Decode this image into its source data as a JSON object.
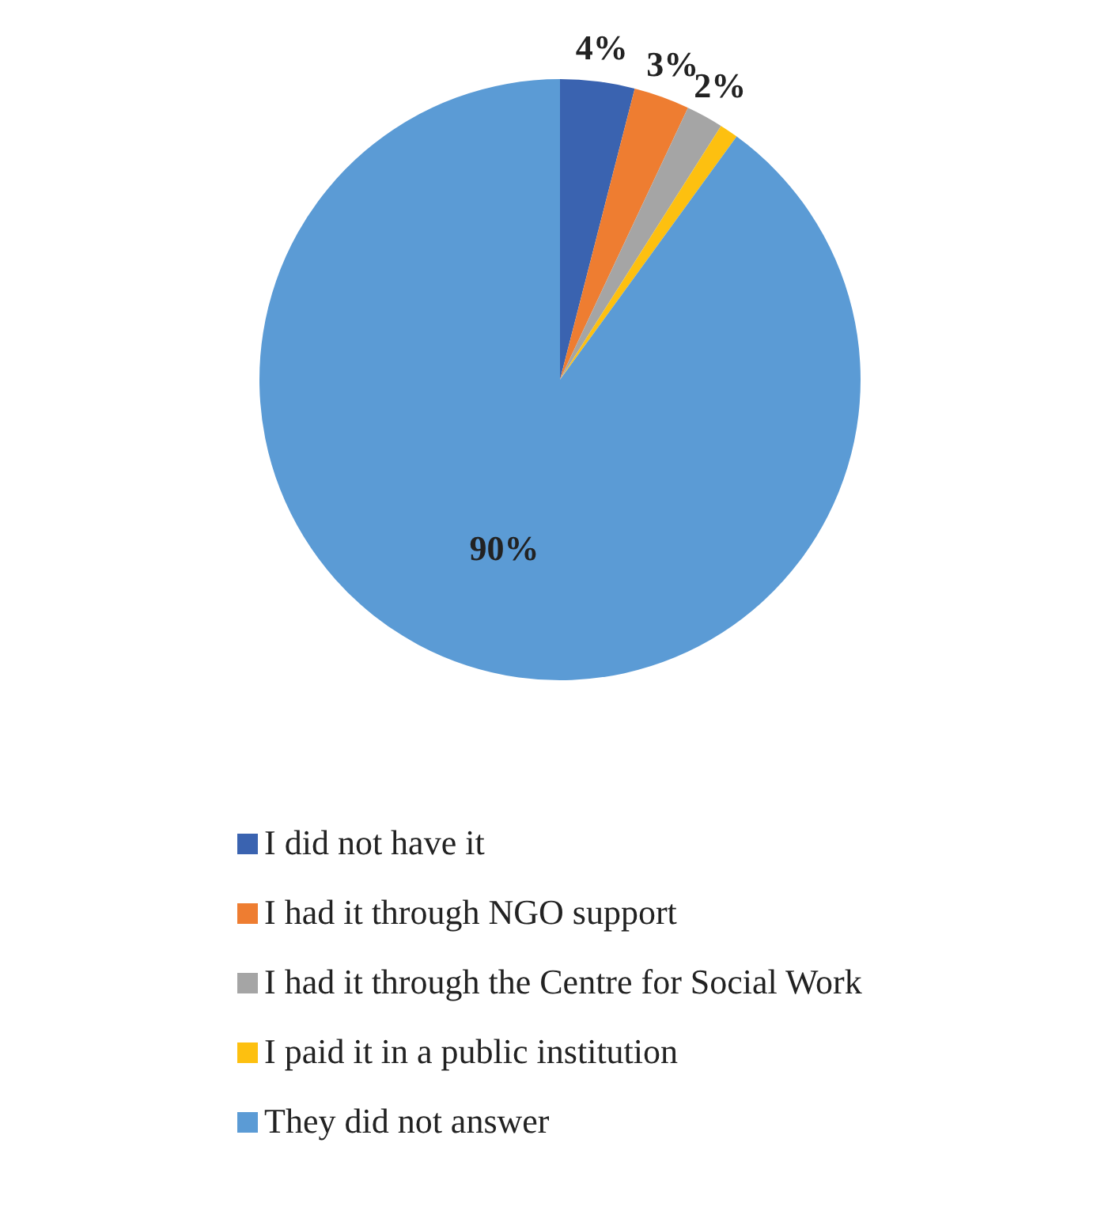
{
  "chart_data": {
    "type": "pie",
    "categories": [
      "I did not have it",
      "I had it through NGO support",
      "I had it through the Centre for Social Work",
      "I paid it in a public institution",
      "They did not answer"
    ],
    "values": [
      4,
      3,
      2,
      1,
      90
    ],
    "colors": [
      "#3a63b0",
      "#ee7d31",
      "#a5a5a5",
      "#fdc010",
      "#5b9bd5"
    ],
    "value_labels": [
      "4%",
      "3%",
      "2%",
      null,
      "90%"
    ],
    "legend": "bottom"
  }
}
